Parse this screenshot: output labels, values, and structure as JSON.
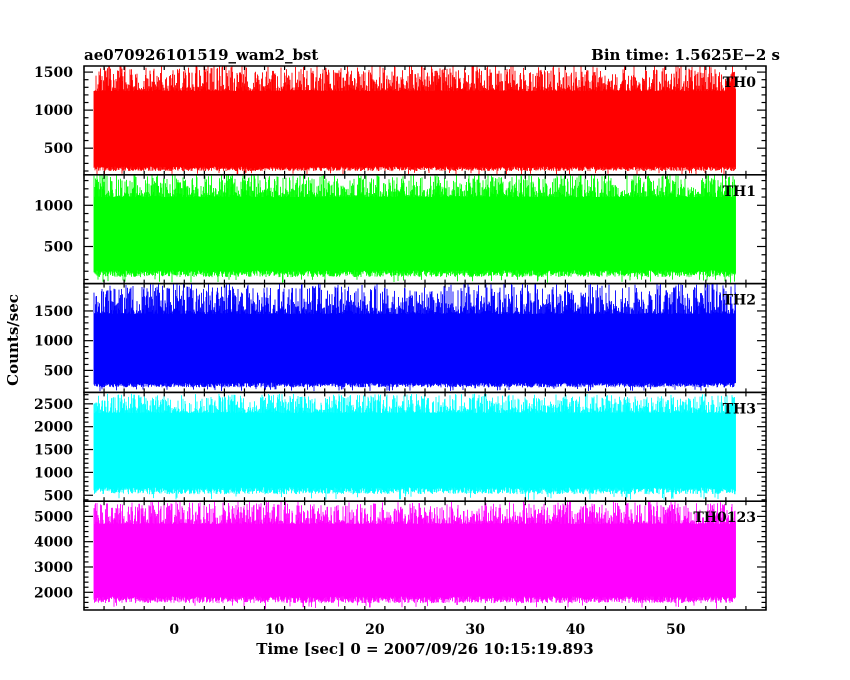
{
  "header": {
    "title": "ae070926101519_wam2_bst",
    "bin_time": "Bin time: 1.5625E−2 s"
  },
  "chart_data": {
    "type": "line",
    "title": "ae070926101519_wam2_bst",
    "xlabel": "Time [sec] 0 = 2007/09/26 10:15:19.893",
    "ylabel": "Counts/sec",
    "xlim": [
      -9,
      59
    ],
    "x_range_data": [
      -8,
      56
    ],
    "xticks": [
      0,
      10,
      20,
      30,
      40,
      50
    ],
    "grid": false,
    "panels": [
      {
        "name": "TH0",
        "color": "#ff0000",
        "ylim": [
          150,
          1580
        ],
        "yticks": [
          500,
          1000,
          1500
        ],
        "typical": [
          250,
          1250
        ],
        "low": 150,
        "high": 1580,
        "spikes_low": [
          {
            "x": 6.3,
            "y": 150
          }
        ],
        "spikes_high": [
          {
            "x": -6.5,
            "y": 1580
          },
          {
            "x": 2.2,
            "y": 1580
          },
          {
            "x": 3.0,
            "y": 1580
          },
          {
            "x": 29.8,
            "y": 1580
          }
        ]
      },
      {
        "name": "TH1",
        "color": "#00ff00",
        "ylim": [
          50,
          1370
        ],
        "yticks": [
          500,
          1000
        ],
        "typical": [
          200,
          1100
        ],
        "low": 60,
        "high": 1370,
        "spikes_low": [],
        "spikes_high": []
      },
      {
        "name": "TH2",
        "color": "#0000ff",
        "ylim": [
          130,
          1960
        ],
        "yticks": [
          500,
          1000,
          1500
        ],
        "typical": [
          280,
          1450
        ],
        "low": 150,
        "high": 1950,
        "spikes_low": [
          {
            "x": 4.0,
            "y": 200
          },
          {
            "x": 30.0,
            "y": 200
          }
        ],
        "spikes_high": [
          {
            "x": 5.5,
            "y": 1850
          },
          {
            "x": 36.0,
            "y": 1950
          },
          {
            "x": 52.5,
            "y": 1800
          }
        ]
      },
      {
        "name": "TH3",
        "color": "#00ffff",
        "ylim": [
          370,
          2750
        ],
        "yticks": [
          500,
          1000,
          1500,
          2000,
          2500
        ],
        "typical": [
          650,
          2300
        ],
        "low": 400,
        "high": 2700,
        "spikes_low": [],
        "spikes_high": [
          {
            "x": -4.0,
            "y": 2700
          },
          {
            "x": 13.0,
            "y": 2650
          }
        ]
      },
      {
        "name": "TH0123",
        "color": "#ff00ff",
        "ylim": [
          1300,
          5600
        ],
        "yticks": [
          2000,
          3000,
          4000,
          5000
        ],
        "typical": [
          1800,
          4700
        ],
        "low": 1350,
        "high": 5550,
        "spikes_low": [
          {
            "x": 19.5,
            "y": 1400
          },
          {
            "x": 28.2,
            "y": 1500
          }
        ],
        "spikes_high": [
          {
            "x": -3.5,
            "y": 5500
          },
          {
            "x": 22.0,
            "y": 5300
          }
        ]
      }
    ]
  }
}
